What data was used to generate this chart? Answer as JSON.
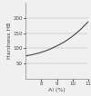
{
  "title": "",
  "xlabel": "Al (%)",
  "ylabel": "Hardness HB",
  "xlim": [
    7,
    11
  ],
  "ylim": [
    0,
    250
  ],
  "xticks": [
    8,
    9,
    10,
    11
  ],
  "yticks": [
    50,
    100,
    150,
    200
  ],
  "x_data": [
    7,
    7.5,
    8,
    8.5,
    9,
    9.5,
    10,
    10.5,
    11
  ],
  "y_data": [
    75,
    80,
    87,
    96,
    108,
    122,
    140,
    162,
    188
  ],
  "line_color": "#444444",
  "line_width": 0.8,
  "bg_color": "#f0f0f0",
  "ylabel_fontsize": 4.5,
  "xlabel_fontsize": 4.5,
  "tick_fontsize": 4.0
}
